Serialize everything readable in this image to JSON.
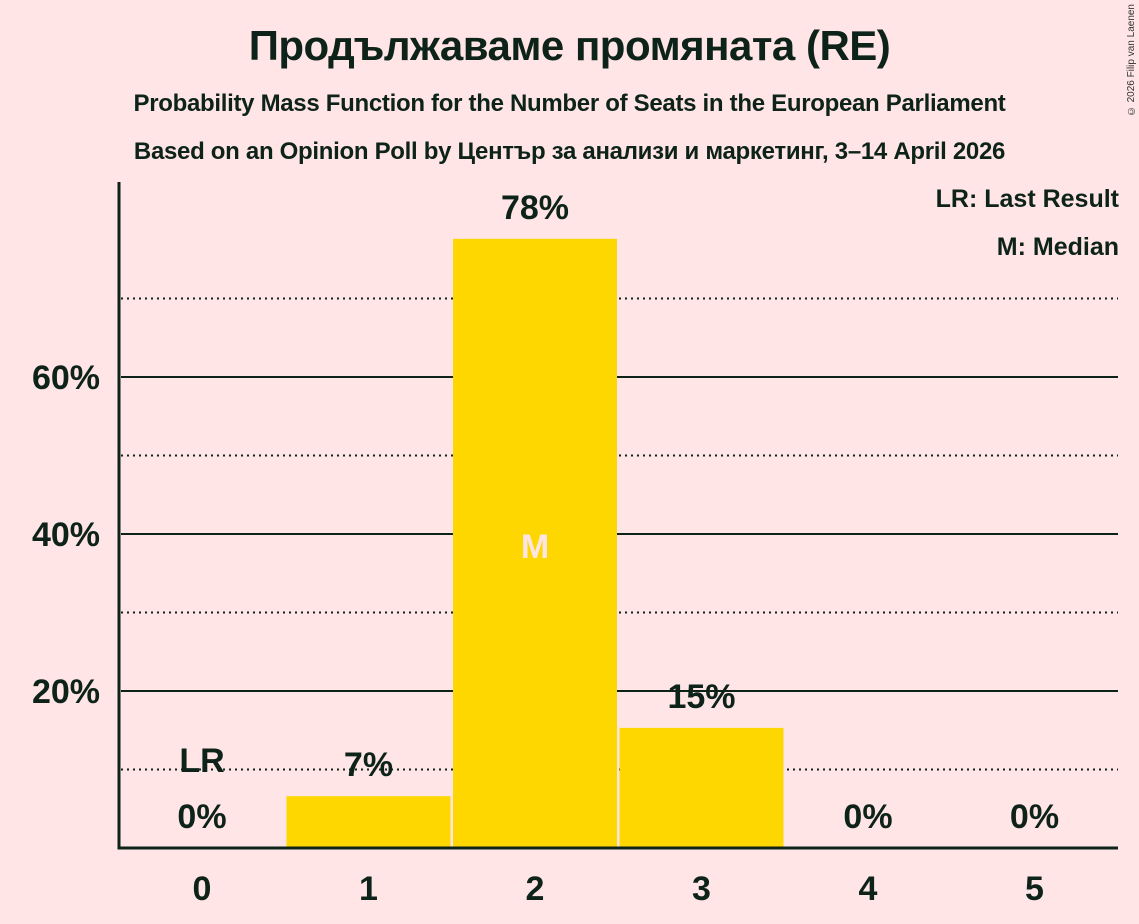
{
  "header": {
    "title": "Продължаваме промяната (RE)",
    "subtitle": "Probability Mass Function for the Number of Seats in the European Parliament",
    "source": "Based on an Opinion Poll by Център за анализи и маркетинг, 3–14 April 2026",
    "copyright": "© 2026 Filip van Laenen"
  },
  "legend": {
    "last_result": "LR: Last Result",
    "median": "M: Median"
  },
  "colors": {
    "background": "#FFE5E5",
    "bar": "#FFD700",
    "text": "#0D2219"
  },
  "chart_data": {
    "type": "bar",
    "title": "Продължаваме промяната (RE)",
    "subtitle": "Probability Mass Function for the Number of Seats in the European Parliament",
    "xlabel": "",
    "ylabel": "",
    "categories": [
      "0",
      "1",
      "2",
      "3",
      "4",
      "5"
    ],
    "values": [
      0,
      6.6,
      77.6,
      15.3,
      0,
      0
    ],
    "data_labels": [
      "0%",
      "7%",
      "78%",
      "15%",
      "0%",
      "0%"
    ],
    "y_ticks": [
      "20%",
      "40%",
      "60%"
    ],
    "y_tick_values": [
      20,
      40,
      60
    ],
    "minor_gridlines": [
      10,
      30,
      50,
      70
    ],
    "ylim": [
      0,
      85
    ],
    "annotations": [
      {
        "category": "0",
        "label": "LR",
        "meaning": "Last Result"
      },
      {
        "category": "2",
        "label": "M",
        "meaning": "Median"
      }
    ],
    "legend": [
      "LR: Last Result",
      "M: Median"
    ],
    "legend_position": "top-right",
    "grid": true
  }
}
